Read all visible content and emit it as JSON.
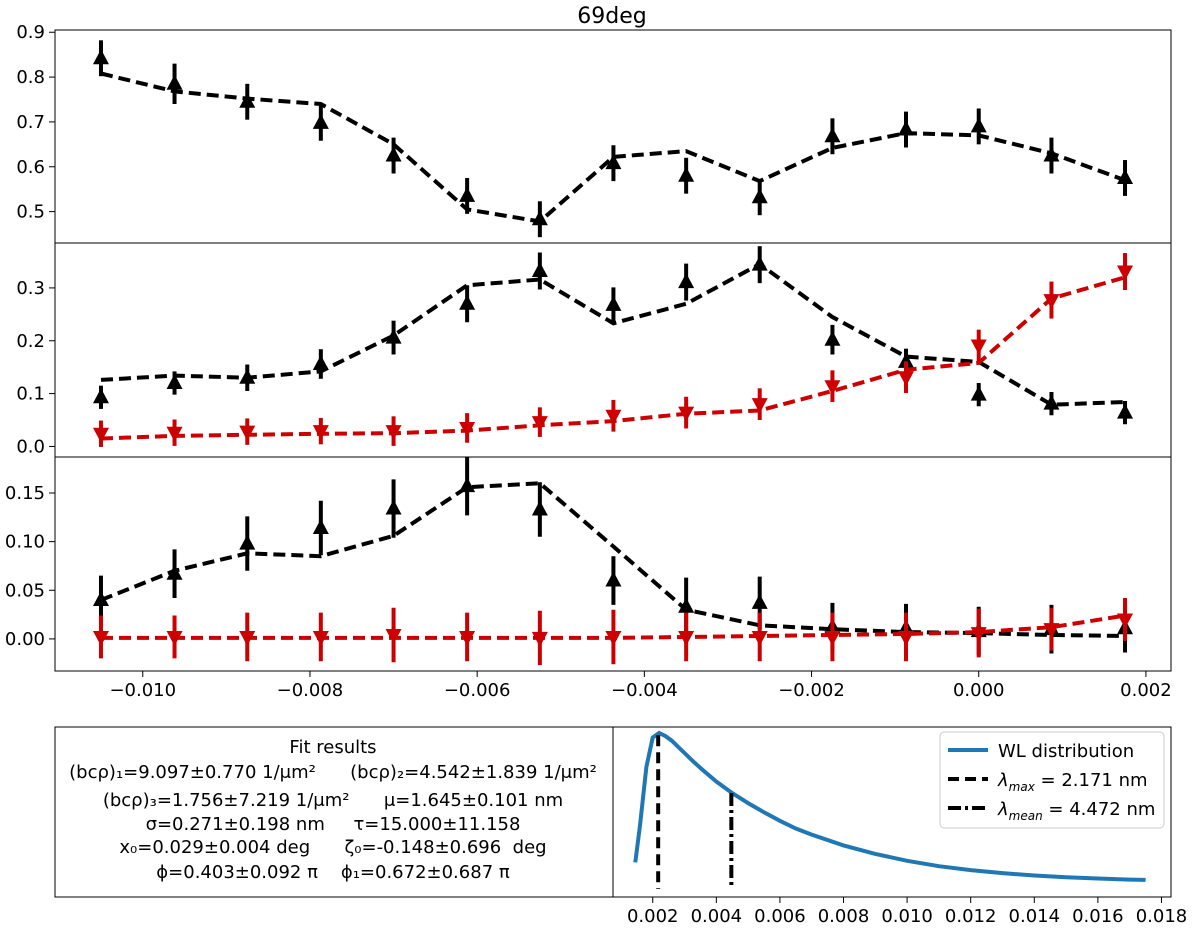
{
  "title": "69deg",
  "x": [
    -0.0105,
    -0.00962,
    -0.00875,
    -0.00787,
    -0.007,
    -0.00612,
    -0.00525,
    -0.00437,
    -0.0035,
    -0.00262,
    -0.00175,
    -0.00087,
    0.0,
    0.00087,
    0.00175
  ],
  "x_ticks": [
    -0.01,
    -0.008,
    -0.006,
    -0.004,
    -0.002,
    0.0,
    0.002
  ],
  "x_tick_labels": [
    "−0.010",
    "−0.008",
    "−0.006",
    "−0.004",
    "−0.002",
    "0.000",
    "0.002"
  ],
  "xlim": [
    -0.01105,
    0.0023
  ],
  "panels": [
    {
      "name": "panel-1",
      "ylim": [
        0.43,
        0.905
      ],
      "y_ticks": [
        0.5,
        0.6,
        0.7,
        0.8,
        0.9
      ],
      "y_tick_labels": [
        "0.5",
        "0.6",
        "0.7",
        "0.8",
        "0.9"
      ],
      "series": [
        {
          "color": "#000000",
          "marker": "triangle-up",
          "fit": [
            0.808,
            0.768,
            0.752,
            0.74,
            0.65,
            0.505,
            0.478,
            0.622,
            0.635,
            0.568,
            0.642,
            0.675,
            0.67,
            0.63,
            0.57
          ],
          "data": [
            0.842,
            0.785,
            0.745,
            0.698,
            0.625,
            0.535,
            0.483,
            0.608,
            0.58,
            0.532,
            0.668,
            0.683,
            0.69,
            0.625,
            0.575
          ],
          "err": [
            0.04,
            0.045,
            0.04,
            0.04,
            0.04,
            0.04,
            0.04,
            0.04,
            0.04,
            0.04,
            0.04,
            0.04,
            0.04,
            0.04,
            0.04
          ]
        }
      ]
    },
    {
      "name": "panel-2",
      "ylim": [
        -0.02,
        0.385
      ],
      "y_ticks": [
        0.0,
        0.1,
        0.2,
        0.3
      ],
      "y_tick_labels": [
        "0.0",
        "0.1",
        "0.2",
        "0.3"
      ],
      "series": [
        {
          "color": "#000000",
          "marker": "triangle-up",
          "fit": [
            0.126,
            0.134,
            0.13,
            0.142,
            0.21,
            0.305,
            0.316,
            0.233,
            0.27,
            0.345,
            0.245,
            0.17,
            0.16,
            0.079,
            0.084
          ],
          "data": [
            0.093,
            0.12,
            0.13,
            0.156,
            0.206,
            0.27,
            0.332,
            0.268,
            0.311,
            0.344,
            0.202,
            0.16,
            0.098,
            0.081,
            0.064
          ],
          "err": [
            0.022,
            0.022,
            0.025,
            0.028,
            0.032,
            0.035,
            0.035,
            0.033,
            0.035,
            0.035,
            0.028,
            0.025,
            0.022,
            0.022,
            0.022
          ]
        },
        {
          "color": "#cc0000",
          "marker": "triangle-down",
          "fit": [
            0.015,
            0.02,
            0.022,
            0.024,
            0.025,
            0.03,
            0.04,
            0.048,
            0.062,
            0.068,
            0.105,
            0.145,
            0.158,
            0.28,
            0.32
          ],
          "data": [
            0.024,
            0.026,
            0.028,
            0.029,
            0.029,
            0.035,
            0.046,
            0.058,
            0.064,
            0.08,
            0.114,
            0.131,
            0.191,
            0.277,
            0.331
          ],
          "err": [
            0.025,
            0.025,
            0.025,
            0.025,
            0.028,
            0.028,
            0.028,
            0.03,
            0.03,
            0.03,
            0.03,
            0.03,
            0.03,
            0.035,
            0.035
          ]
        }
      ]
    },
    {
      "name": "panel-3",
      "ylim": [
        -0.033,
        0.187
      ],
      "y_ticks": [
        0.0,
        0.05,
        0.1,
        0.15
      ],
      "y_tick_labels": [
        "0.00",
        "0.05",
        "0.10",
        "0.15"
      ],
      "series": [
        {
          "color": "#000000",
          "marker": "triangle-up",
          "fit": [
            0.04,
            0.07,
            0.088,
            0.085,
            0.106,
            0.156,
            0.16,
            0.095,
            0.03,
            0.014,
            0.01,
            0.007,
            0.006,
            0.004,
            0.003
          ],
          "data": [
            0.04,
            0.067,
            0.098,
            0.114,
            0.134,
            0.157,
            0.133,
            0.06,
            0.033,
            0.037,
            0.012,
            0.011,
            0.008,
            0.01,
            0.011
          ],
          "err": [
            0.025,
            0.025,
            0.028,
            0.028,
            0.03,
            0.03,
            0.028,
            0.025,
            0.03,
            0.027,
            0.025,
            0.025,
            0.025,
            0.025,
            0.025
          ]
        },
        {
          "color": "#cc0000",
          "marker": "triangle-down",
          "fit": [
            0.001,
            0.001,
            0.001,
            0.001,
            0.001,
            0.001,
            0.001,
            0.001,
            0.002,
            0.003,
            0.004,
            0.005,
            0.007,
            0.012,
            0.024
          ],
          "data": [
            0.002,
            0.002,
            0.002,
            0.002,
            0.004,
            0.002,
            0.001,
            0.002,
            0.002,
            0.002,
            0.002,
            0.002,
            0.006,
            0.01,
            0.02
          ],
          "err": [
            0.022,
            0.022,
            0.025,
            0.025,
            0.028,
            0.025,
            0.028,
            0.028,
            0.025,
            0.025,
            0.025,
            0.025,
            0.025,
            0.022,
            0.022
          ]
        }
      ]
    }
  ],
  "fit_results": {
    "heading": "Fit results",
    "lines": [
      "(bᴄρ)₁=9.097±0.770 1/μm²      (bᴄρ)₂=4.542±1.839 1/μm²",
      "(bᴄρ)₃=1.756±7.219 1/μm²      μ=1.645±0.101 nm",
      "σ=0.271±0.198 nm     τ=15.000±11.158",
      "x₀=0.029±0.004 deg      ζ₀=-0.148±0.696  deg",
      "ϕ=0.403±0.092 π    ϕ₁=0.672±0.687 π"
    ]
  },
  "wl": {
    "xlim": [
      0.00075,
      0.0183
    ],
    "x_ticks": [
      0.002,
      0.004,
      0.006,
      0.008,
      0.01,
      0.012,
      0.014,
      0.016,
      0.018
    ],
    "x_tick_labels": [
      "0.002",
      "0.004",
      "0.006",
      "0.008",
      "0.010",
      "0.012",
      "0.014",
      "0.016",
      "0.018"
    ],
    "curve": {
      "x": [
        0.00145,
        0.0016,
        0.0018,
        0.002,
        0.0022,
        0.0024,
        0.0026,
        0.0028,
        0.003,
        0.0033,
        0.0036,
        0.004,
        0.0045,
        0.005,
        0.0055,
        0.006,
        0.0065,
        0.007,
        0.008,
        0.009,
        0.01,
        0.011,
        0.012,
        0.013,
        0.014,
        0.015,
        0.016,
        0.017,
        0.0175
      ],
      "y": [
        0.16,
        0.4,
        0.78,
        0.97,
        1.0,
        0.98,
        0.95,
        0.91,
        0.87,
        0.81,
        0.755,
        0.685,
        0.61,
        0.545,
        0.485,
        0.43,
        0.38,
        0.34,
        0.27,
        0.215,
        0.17,
        0.135,
        0.11,
        0.09,
        0.075,
        0.063,
        0.055,
        0.048,
        0.046
      ]
    },
    "lambda_max": 0.002171,
    "lambda_mean": 0.004472,
    "lambda_max_top": 0.985,
    "lambda_mean_top": 0.61,
    "legend": {
      "position": "top-right",
      "curve_label": "WL distribution",
      "max_label": "λ",
      "max_sub": "max",
      "max_value": " = 2.171 nm",
      "mean_label": "λ",
      "mean_sub": "mean",
      "mean_value": " = 4.472 nm"
    },
    "curve_color": "#1f77b4"
  }
}
